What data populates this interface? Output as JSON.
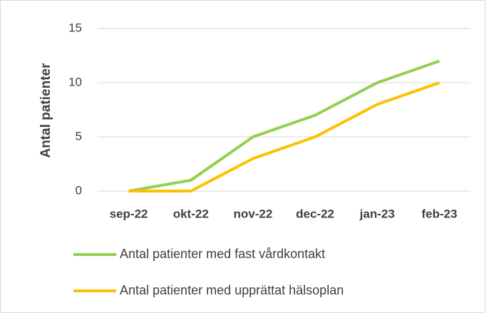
{
  "chart_data": {
    "type": "line",
    "y_label": "Antal patienter",
    "categories": [
      "sep-22",
      "okt-22",
      "nov-22",
      "dec-22",
      "jan-23",
      "feb-23"
    ],
    "series": [
      {
        "name": "Antal patienter med fast vårdkontakt",
        "color": "#92d050",
        "values": [
          0,
          1,
          5,
          7,
          10,
          12
        ]
      },
      {
        "name": "Antal patienter med upprättat hälsoplan",
        "color": "#ffc000",
        "values": [
          0,
          0,
          3,
          5,
          8,
          10
        ]
      }
    ],
    "ylim": [
      0,
      15
    ],
    "yticks": [
      0,
      5,
      10,
      15
    ],
    "grid": true,
    "legend": "bottom"
  }
}
